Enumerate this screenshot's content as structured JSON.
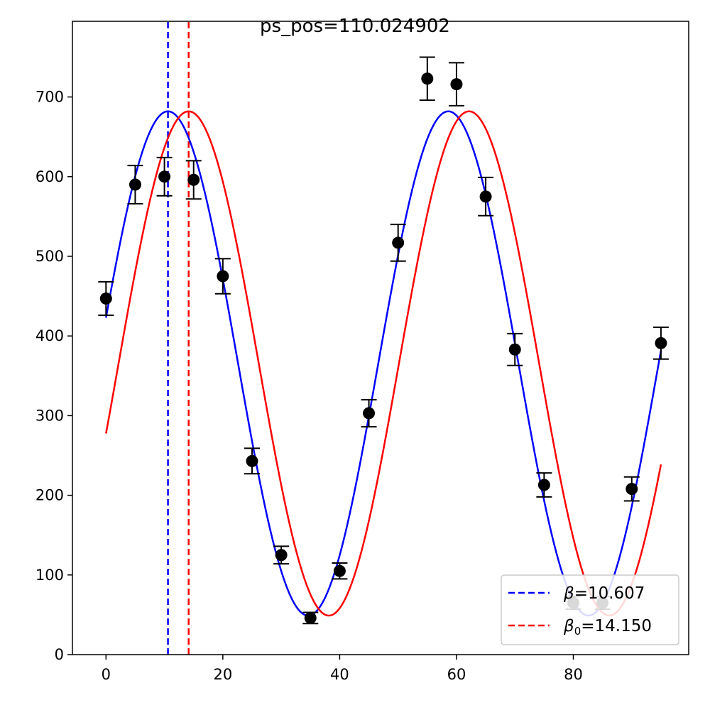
{
  "chart_data": {
    "type": "scatter",
    "title": "ps_pos=110.024902",
    "xlabel": "",
    "ylabel": "",
    "xlim": [
      -5.75,
      99.75
    ],
    "ylim": [
      0,
      795
    ],
    "grid": false,
    "legend_position": "lower-right",
    "x_ticks": [
      0,
      20,
      40,
      60,
      80
    ],
    "y_ticks": [
      0,
      100,
      200,
      300,
      400,
      500,
      600,
      700
    ],
    "points": {
      "name": "",
      "color": "#000000",
      "x": [
        0,
        5,
        10,
        15,
        20,
        25,
        30,
        35,
        40,
        45,
        50,
        55,
        60,
        65,
        70,
        75,
        80,
        85,
        90,
        95
      ],
      "y": [
        447,
        590,
        600,
        596,
        475,
        243,
        125,
        46,
        105,
        303,
        517,
        723,
        716,
        575,
        383,
        213,
        65,
        65,
        208,
        391
      ],
      "err": [
        21,
        24,
        24,
        24,
        22,
        16,
        11,
        7,
        10,
        17,
        23,
        27,
        27,
        24,
        20,
        15,
        8,
        8,
        15,
        20
      ]
    },
    "curves": [
      {
        "name": "β=10.607",
        "color": "#0000ff",
        "offset": 365.5,
        "amplitude": 316.5,
        "period": 48.0,
        "phase": 10.607,
        "x_range": [
          0,
          95
        ]
      },
      {
        "name": "β₀=14.150",
        "color": "#ff0000",
        "offset": 365.5,
        "amplitude": 316.5,
        "period": 48.0,
        "phase": 14.15,
        "x_range": [
          0,
          95
        ]
      }
    ],
    "vlines": [
      {
        "x": 10.607,
        "color": "#0000ff",
        "style": "dashed"
      },
      {
        "x": 14.15,
        "color": "#ff0000",
        "style": "dashed"
      }
    ],
    "legend": [
      {
        "prefix": "β",
        "sub": "",
        "value": "=10.607",
        "color": "#0000ff"
      },
      {
        "prefix": "β",
        "sub": "0",
        "value": "=14.150",
        "color": "#ff0000"
      }
    ]
  }
}
